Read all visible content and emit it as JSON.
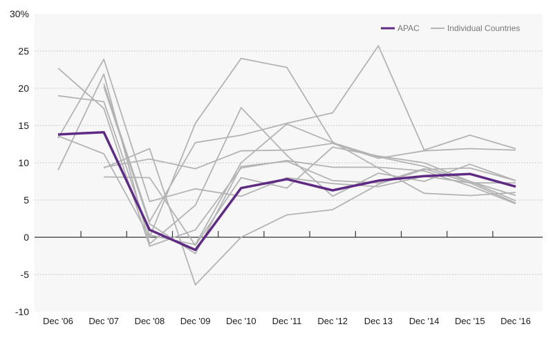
{
  "chart_data": {
    "type": "line",
    "title": "",
    "xlabel": "",
    "ylabel": "",
    "ylim": [
      -10,
      30
    ],
    "grid": true,
    "legend_position": "top-right",
    "y_ticks": [
      {
        "value": 30,
        "label": "30%"
      },
      {
        "value": 25,
        "label": "25"
      },
      {
        "value": 20,
        "label": "20"
      },
      {
        "value": 15,
        "label": "15"
      },
      {
        "value": 10,
        "label": "10"
      },
      {
        "value": 5,
        "label": "5"
      },
      {
        "value": 0,
        "label": "0"
      },
      {
        "value": -5,
        "label": "-5"
      },
      {
        "value": -10,
        "label": "-10"
      }
    ],
    "categories": [
      "Dec '06",
      "Dec '07",
      "Dec '08",
      "Dec '09",
      "Dec '10",
      "Dec '11",
      "Dec '12",
      "Dec 13",
      "Dec '14",
      "Dec '15",
      "Dec '16"
    ],
    "legend": {
      "highlight_label": "APAC",
      "others_label": "Individual Countries"
    },
    "colors": {
      "highlight": "#5e2a84",
      "others": "#b3b3b3",
      "grid": "#c8c8c8",
      "plot_background": "#f7f7f7"
    },
    "highlight_series": {
      "name": "APAC",
      "values": [
        13.8,
        14.1,
        1.0,
        -1.7,
        6.6,
        7.8,
        6.3,
        7.6,
        8.2,
        8.5,
        6.8
      ]
    },
    "other_series": [
      {
        "values": [
          22.7,
          17.3,
          -1.2,
          1.0,
          9.3,
          10.3,
          9.4,
          9.4,
          8.9,
          6.9,
          4.5
        ]
      },
      {
        "values": [
          19.0,
          18.2,
          0.3,
          -1.0,
          10.0,
          15.2,
          12.7,
          10.8,
          9.5,
          7.5,
          5.6
        ]
      },
      {
        "values": [
          13.3,
          23.9,
          4.8,
          6.5,
          5.5,
          8.0,
          7.2,
          6.8,
          8.2,
          7.3,
          7.3
        ]
      },
      {
        "values": [
          13.6,
          11.2,
          0.0,
          15.3,
          24.0,
          22.8,
          12.8,
          9.3,
          5.9,
          5.6,
          6.0
        ]
      },
      {
        "values": [
          9.0,
          21.9,
          -0.9,
          4.3,
          17.4,
          11.0,
          5.5,
          8.6,
          7.5,
          9.8,
          7.6
        ]
      },
      {
        "values": [
          null,
          20.2,
          1.8,
          -2.2,
          9.5,
          10.2,
          7.6,
          7.3,
          9.2,
          7.3,
          4.6
        ]
      },
      {
        "values": [
          null,
          8.1,
          8.0,
          -1.1,
          8.0,
          6.6,
          12.1,
          10.9,
          10.0,
          7.5,
          4.9
        ]
      },
      {
        "values": [
          null,
          9.3,
          11.9,
          -6.4,
          0.0,
          3.0,
          3.7,
          7.1,
          9.1,
          9.3,
          7.6
        ]
      },
      {
        "values": [
          null,
          20.6,
          2.1,
          12.7,
          13.7,
          15.3,
          16.7,
          25.7,
          11.7,
          13.7,
          11.9
        ]
      },
      {
        "values": [
          null,
          9.4,
          10.5,
          9.2,
          11.6,
          11.7,
          12.6,
          10.6,
          11.6,
          11.9,
          11.7
        ]
      }
    ]
  }
}
